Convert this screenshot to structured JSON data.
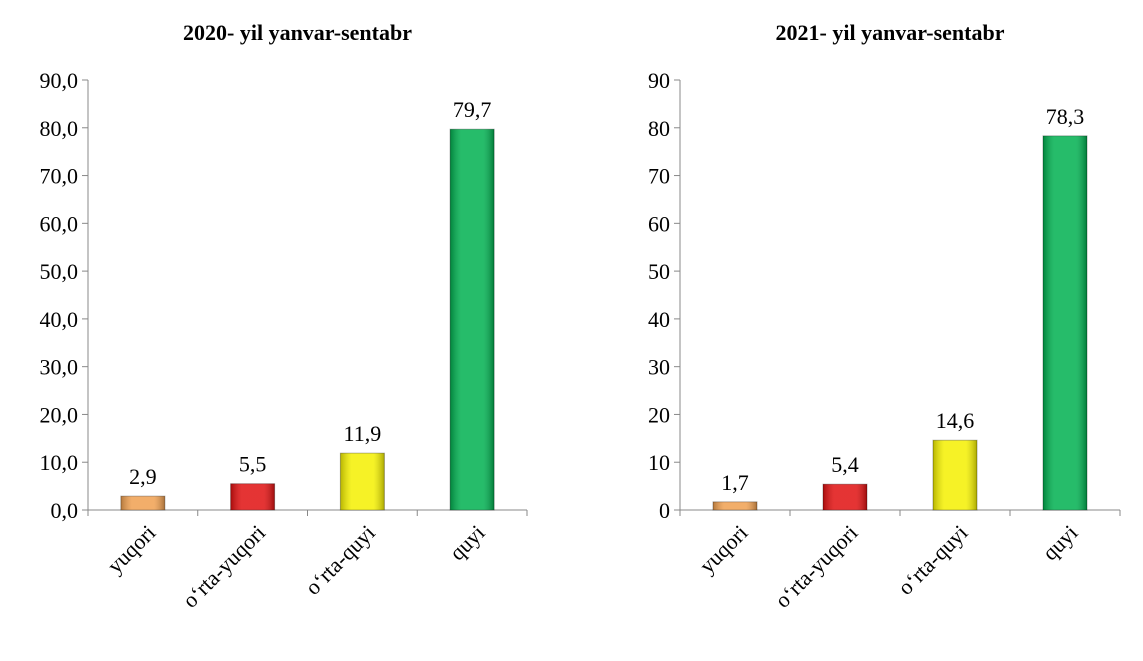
{
  "chart_data": [
    {
      "type": "bar",
      "title": "2020- yil yanvar-sentabr",
      "categories": [
        "yuqori",
        "o‘rta-yuqori",
        "o‘rta-quyi",
        "quyi"
      ],
      "values": [
        2.9,
        5.5,
        11.9,
        79.7
      ],
      "value_labels": [
        "2,9",
        "5,5",
        "11,9",
        "79,7"
      ],
      "colors": [
        "#f0a050",
        "#e01010",
        "#f4f000",
        "#00b050"
      ],
      "ylim": [
        0,
        90
      ],
      "yticks": [
        {
          "value": 0,
          "label": "0,0"
        },
        {
          "value": 10,
          "label": "10,0"
        },
        {
          "value": 20,
          "label": "20,0"
        },
        {
          "value": 30,
          "label": "30,0"
        },
        {
          "value": 40,
          "label": "40,0"
        },
        {
          "value": 50,
          "label": "50,0"
        },
        {
          "value": 60,
          "label": "60,0"
        },
        {
          "value": 70,
          "label": "70,0"
        },
        {
          "value": 80,
          "label": "80,0"
        },
        {
          "value": 90,
          "label": "90,0"
        }
      ]
    },
    {
      "type": "bar",
      "title": "2021- yil yanvar-sentabr",
      "categories": [
        "yuqori",
        "o‘rta-yuqori",
        "o‘rta-quyi",
        "quyi"
      ],
      "values": [
        1.7,
        5.4,
        14.6,
        78.3
      ],
      "value_labels": [
        "1,7",
        "5,4",
        "14,6",
        "78,3"
      ],
      "colors": [
        "#f0a050",
        "#e01010",
        "#f4f000",
        "#00b050"
      ],
      "ylim": [
        0,
        90
      ],
      "yticks": [
        0,
        10,
        20,
        30,
        40,
        50,
        60,
        70,
        80,
        90
      ]
    }
  ]
}
